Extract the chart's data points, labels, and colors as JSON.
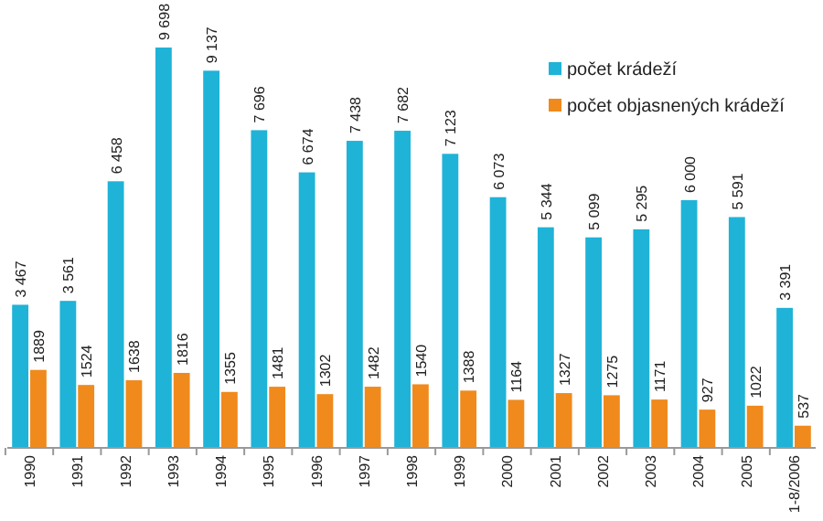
{
  "chart_data": {
    "type": "bar",
    "categories": [
      "1990",
      "1991",
      "1992",
      "1993",
      "1994",
      "1995",
      "1996",
      "1997",
      "1998",
      "1999",
      "2000",
      "2001",
      "2002",
      "2003",
      "2004",
      "2005",
      "1-8/2006"
    ],
    "series": [
      {
        "name": "počet krádeží",
        "color": "#1fb3d8",
        "values": [
          3467,
          3561,
          6458,
          9698,
          9137,
          7696,
          6674,
          7438,
          7682,
          7123,
          6073,
          5344,
          5099,
          5295,
          6000,
          5591,
          3391
        ],
        "value_labels": [
          "3 467",
          "3 561",
          "6 458",
          "9 698",
          "9 137",
          "7 696",
          "6 674",
          "7 438",
          "7 682",
          "7 123",
          "6 073",
          "5 344",
          "5 099",
          "5 295",
          "6 000",
          "5 591",
          "3 391"
        ]
      },
      {
        "name": "počet objasnených krádeží",
        "color": "#f08a1c",
        "values": [
          1889,
          1524,
          1638,
          1816,
          1355,
          1481,
          1302,
          1482,
          1540,
          1388,
          1164,
          1327,
          1275,
          1171,
          927,
          1022,
          537
        ],
        "value_labels": [
          "1889",
          "1524",
          "1638",
          "1816",
          "1355",
          "1481",
          "1302",
          "1482",
          "1540",
          "1388",
          "1164",
          "1327",
          "1275",
          "1171",
          "927",
          "1022",
          "537"
        ]
      }
    ],
    "legend": "top right"
  }
}
